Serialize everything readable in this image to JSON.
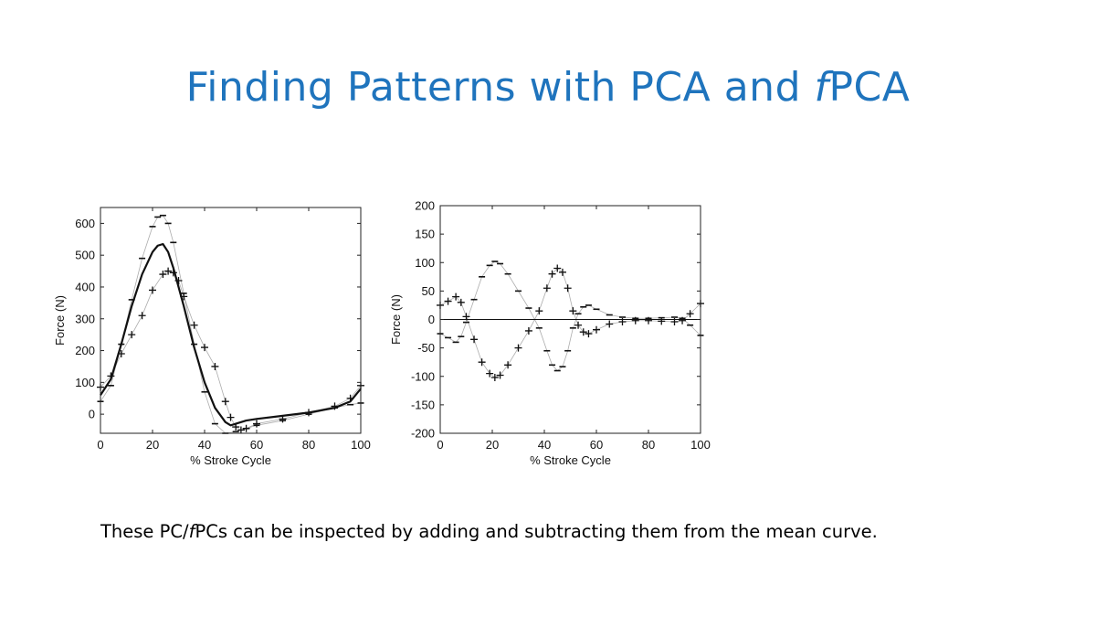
{
  "slide": {
    "title_parts": [
      "Finding Patterns with PCA and ",
      "f",
      "PCA"
    ],
    "caption_parts": [
      "These PC/",
      "f",
      "PCs can be inspected by adding and subtracting them from the mean curve."
    ]
  },
  "chart_data": [
    {
      "type": "line",
      "xlabel": "% Stroke Cycle",
      "ylabel": "Force (N)",
      "xlim": [
        0,
        100
      ],
      "ylim": [
        -60,
        650
      ],
      "xticks": [
        0,
        20,
        40,
        60,
        80,
        100
      ],
      "yticks": [
        0,
        100,
        200,
        300,
        400,
        500,
        600
      ],
      "grid": false,
      "color": "#111111",
      "series": [
        {
          "marker": "none",
          "x": [
            0,
            4,
            8,
            12,
            16,
            20,
            22,
            24,
            26,
            28,
            32,
            36,
            40,
            44,
            48,
            50,
            52,
            54,
            56,
            60,
            70,
            80,
            90,
            96,
            100
          ],
          "y": [
            60,
            110,
            220,
            340,
            440,
            510,
            530,
            535,
            510,
            460,
            340,
            210,
            100,
            20,
            -25,
            -35,
            -30,
            -25,
            -20,
            -15,
            -5,
            5,
            20,
            40,
            80
          ]
        },
        {
          "marker": "+",
          "x": [
            0,
            4,
            8,
            12,
            16,
            20,
            24,
            26,
            28,
            30,
            32,
            36,
            40,
            44,
            48,
            50,
            52,
            54,
            56,
            60,
            70,
            80,
            90,
            96,
            100
          ],
          "y": [
            85,
            120,
            190,
            250,
            310,
            390,
            440,
            450,
            445,
            420,
            370,
            280,
            210,
            150,
            40,
            -10,
            -40,
            -50,
            -45,
            -30,
            -15,
            5,
            25,
            50,
            90
          ]
        },
        {
          "marker": "-",
          "x": [
            0,
            4,
            8,
            12,
            16,
            20,
            22,
            24,
            26,
            28,
            32,
            36,
            40,
            44,
            48,
            52,
            56,
            60,
            70,
            80,
            90,
            96,
            100
          ],
          "y": [
            40,
            90,
            220,
            360,
            490,
            590,
            620,
            625,
            600,
            540,
            380,
            220,
            70,
            -30,
            -60,
            -55,
            -45,
            -35,
            -20,
            0,
            20,
            30,
            35
          ]
        }
      ]
    },
    {
      "type": "line",
      "xlabel": "% Stroke Cycle",
      "ylabel": "Force (N)",
      "xlim": [
        0,
        100
      ],
      "ylim": [
        -200,
        200
      ],
      "xticks": [
        0,
        20,
        40,
        60,
        80,
        100
      ],
      "yticks": [
        -200,
        -150,
        -100,
        -50,
        0,
        50,
        100,
        150,
        200
      ],
      "grid": false,
      "color": "#111111",
      "series": [
        {
          "marker": "none",
          "x": [
            0,
            100
          ],
          "y": [
            0,
            0
          ]
        },
        {
          "marker": "+",
          "x": [
            0,
            3,
            6,
            8,
            10,
            13,
            16,
            19,
            21,
            23,
            26,
            30,
            34,
            38,
            41,
            43,
            45,
            47,
            49,
            51,
            53,
            55,
            57,
            60,
            65,
            70,
            75,
            80,
            85,
            90,
            93,
            96,
            100
          ],
          "y": [
            25,
            32,
            40,
            30,
            5,
            -35,
            -75,
            -95,
            -102,
            -98,
            -80,
            -50,
            -20,
            15,
            55,
            80,
            90,
            83,
            55,
            15,
            -10,
            -22,
            -25,
            -18,
            -8,
            -4,
            -2,
            -2,
            -3,
            -4,
            -2,
            10,
            28
          ]
        },
        {
          "marker": "-",
          "x": [
            0,
            3,
            6,
            8,
            10,
            13,
            16,
            19,
            21,
            23,
            26,
            30,
            34,
            38,
            41,
            43,
            45,
            47,
            49,
            51,
            53,
            55,
            57,
            60,
            65,
            70,
            75,
            80,
            85,
            90,
            93,
            96,
            100
          ],
          "y": [
            -25,
            -32,
            -40,
            -30,
            -5,
            35,
            75,
            95,
            102,
            98,
            80,
            50,
            20,
            -15,
            -55,
            -80,
            -90,
            -83,
            -55,
            -15,
            10,
            22,
            25,
            18,
            8,
            4,
            2,
            2,
            3,
            4,
            2,
            -10,
            -28
          ]
        }
      ]
    }
  ]
}
